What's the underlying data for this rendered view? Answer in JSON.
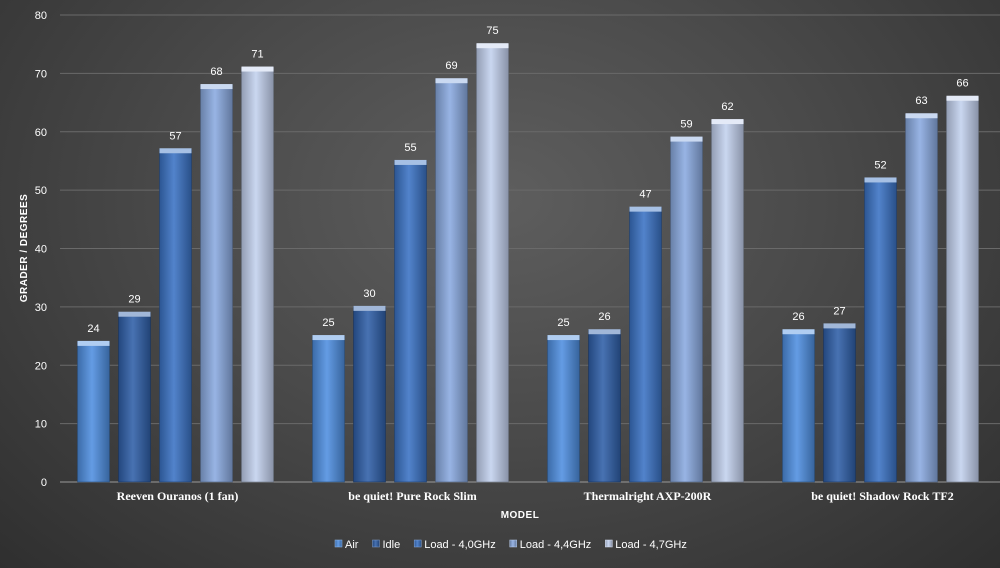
{
  "chart_data": {
    "type": "bar",
    "title": "",
    "xlabel": "MODEL",
    "ylabel": "GRADER / DEGREES",
    "ylim": [
      0,
      80
    ],
    "yticks": [
      0,
      10,
      20,
      30,
      40,
      50,
      60,
      70,
      80
    ],
    "grid": true,
    "legend_position": "bottom",
    "categories": [
      "Reeven Ouranos (1 fan)",
      "be quiet! Pure Rock Slim",
      "Thermalright AXP-200R",
      "be quiet! Shadow Rock TF2"
    ],
    "series": [
      {
        "name": "Air",
        "color": "#4f8fe0",
        "values": [
          24,
          25,
          25,
          26
        ]
      },
      {
        "name": "Idle",
        "color": "#2f5fa8",
        "values": [
          29,
          30,
          26,
          27
        ]
      },
      {
        "name": "Load - 4,0GHz",
        "color": "#3a72c4",
        "values": [
          57,
          55,
          47,
          52
        ]
      },
      {
        "name": "Load - 4,4GHz",
        "color": "#8aaae0",
        "values": [
          68,
          69,
          59,
          63
        ]
      },
      {
        "name": "Load - 4,7GHz",
        "color": "#c3d1ee",
        "values": [
          71,
          75,
          62,
          66
        ]
      }
    ]
  }
}
